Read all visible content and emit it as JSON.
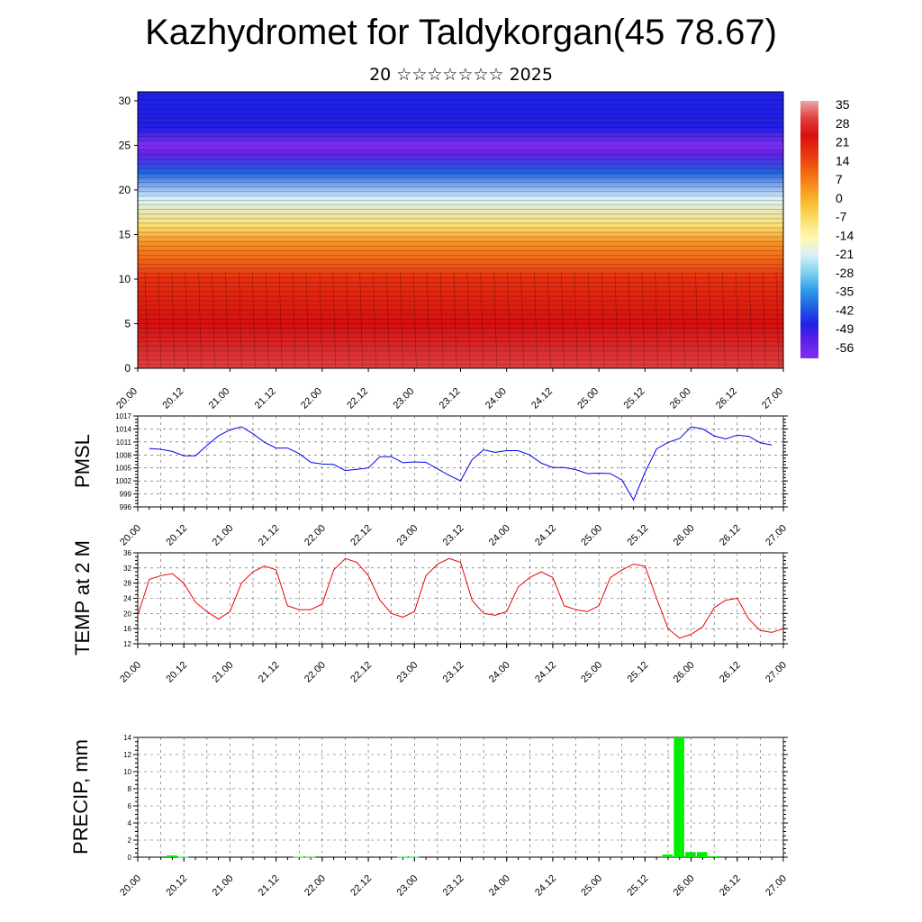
{
  "title": "Kazhydromet for Taldykorgan(45 78.67)",
  "subtitle": "20 ☆☆☆☆☆☆☆ 2025",
  "time_labels": [
    "20.00",
    "20.12",
    "21.00",
    "21.12",
    "22.00",
    "22.12",
    "23.00",
    "23.12",
    "24.00",
    "24.12",
    "25.00",
    "25.12",
    "26.00",
    "26.12",
    "27.00"
  ],
  "chart_data": [
    {
      "type": "heatmap",
      "name": "temperature-height-section",
      "x_ticks": [
        "20.00",
        "20.12",
        "21.00",
        "21.12",
        "22.00",
        "22.12",
        "23.00",
        "23.12",
        "24.00",
        "24.12",
        "25.00",
        "25.12",
        "26.00",
        "26.12",
        "27.00"
      ],
      "y_ticks": [
        0,
        5,
        10,
        15,
        20,
        25,
        30
      ],
      "ylim": [
        0,
        31
      ],
      "colorbar": {
        "labels": [
          "35",
          "28",
          "21",
          "14",
          "7",
          "0",
          "-7",
          "-14",
          "-21",
          "-28",
          "-35",
          "-42",
          "-49",
          "-56"
        ],
        "colors": [
          "#e8a8a8",
          "#e04040",
          "#d81010",
          "#e83010",
          "#f06010",
          "#f89020",
          "#f8c030",
          "#fde070",
          "#fff8b0",
          "#d8f0f8",
          "#80d0f0",
          "#30a0e8",
          "#2060e0",
          "#2020e8",
          "#6020e8",
          "#8030f0"
        ]
      },
      "series": [
        {
          "profile_heights": [
            0,
            5,
            10,
            14,
            16,
            19,
            22,
            24,
            25,
            27,
            31
          ],
          "profile_values": [
            32,
            28,
            18,
            6,
            -8,
            -24,
            -40,
            -52,
            -58,
            -50,
            -48
          ]
        }
      ]
    },
    {
      "type": "line",
      "ylabel": "PMSL",
      "ylim": [
        996,
        1017
      ],
      "yticks": [
        996,
        999,
        1002,
        1005,
        1008,
        1011,
        1014,
        1017
      ],
      "color": "#0000ee",
      "x_ticks": [
        "20.00",
        "20.12",
        "21.00",
        "21.12",
        "22.00",
        "22.12",
        "23.00",
        "23.12",
        "24.00",
        "24.12",
        "25.00",
        "25.12",
        "26.00",
        "26.12",
        "27.00"
      ],
      "values": [
        1009.5,
        1009.3,
        1008.8,
        1007.8,
        1007.8,
        1010.2,
        1012.4,
        1013.8,
        1014.5,
        1012.9,
        1010.9,
        1009.6,
        1009.6,
        1008.3,
        1006.3,
        1005.9,
        1005.8,
        1004.4,
        1004.7,
        1005.0,
        1007.6,
        1007.6,
        1006.2,
        1006.4,
        1006.3,
        1004.8,
        1003.3,
        1002.0,
        1006.9,
        1009.2,
        1008.6,
        1009.0,
        1009.0,
        1008.0,
        1006.1,
        1005.1,
        1005.1,
        1004.6,
        1003.7,
        1003.8,
        1003.7,
        1002.2,
        997.6,
        1004.0,
        1009.4,
        1010.9,
        1011.8,
        1014.5,
        1014.0,
        1012.4,
        1011.7,
        1012.6,
        1012.3,
        1010.8,
        1010.3
      ],
      "x_step_hours": 3
    },
    {
      "type": "line",
      "ylabel": "TEMP at 2 M",
      "ylim": [
        12,
        36
      ],
      "yticks": [
        12,
        16,
        20,
        24,
        28,
        32,
        36
      ],
      "color": "#ee0000",
      "x_ticks": [
        "20.00",
        "20.12",
        "21.00",
        "21.12",
        "22.00",
        "22.12",
        "23.00",
        "23.12",
        "24.00",
        "24.12",
        "25.00",
        "25.12",
        "26.00",
        "26.12",
        "27.00"
      ],
      "values": [
        19.5,
        29.0,
        30.0,
        30.5,
        28.0,
        23.0,
        20.5,
        18.5,
        20.5,
        28.0,
        31.0,
        32.5,
        31.5,
        22.0,
        21.0,
        21.0,
        22.5,
        31.5,
        34.5,
        33.5,
        30.0,
        23.5,
        20.0,
        19.0,
        20.5,
        30.0,
        33.0,
        34.5,
        33.5,
        23.5,
        20.0,
        19.5,
        20.5,
        27.0,
        29.5,
        31.0,
        29.5,
        22.0,
        21.0,
        20.5,
        22.0,
        29.5,
        31.5,
        33.0,
        32.5,
        24.0,
        16.0,
        13.5,
        14.5,
        16.5,
        21.5,
        23.5,
        24.0,
        18.5,
        15.5,
        15.0,
        16.0
      ],
      "x_step_hours": 3
    },
    {
      "type": "bar",
      "ylabel": "PRECIP, mm",
      "ylim": [
        0,
        14
      ],
      "yticks": [
        0,
        2,
        4,
        6,
        8,
        10,
        12,
        14
      ],
      "color": "#00ee00",
      "x_ticks": [
        "20.00",
        "20.12",
        "21.00",
        "21.12",
        "22.00",
        "22.12",
        "23.00",
        "23.12",
        "24.00",
        "24.12",
        "25.00",
        "25.12",
        "26.00",
        "26.12",
        "27.00"
      ],
      "bars": [
        {
          "t": 9,
          "v": 0.2
        },
        {
          "t": 12,
          "v": 0.05
        },
        {
          "t": 42,
          "v": 0.05
        },
        {
          "t": 45,
          "v": 0.05
        },
        {
          "t": 69,
          "v": 0.05
        },
        {
          "t": 72,
          "v": 0.05
        },
        {
          "t": 138,
          "v": 0.3
        },
        {
          "t": 141,
          "v": 14.0
        },
        {
          "t": 144,
          "v": 0.6
        },
        {
          "t": 147,
          "v": 0.6
        },
        {
          "t": 150,
          "v": 0.1
        }
      ]
    }
  ]
}
